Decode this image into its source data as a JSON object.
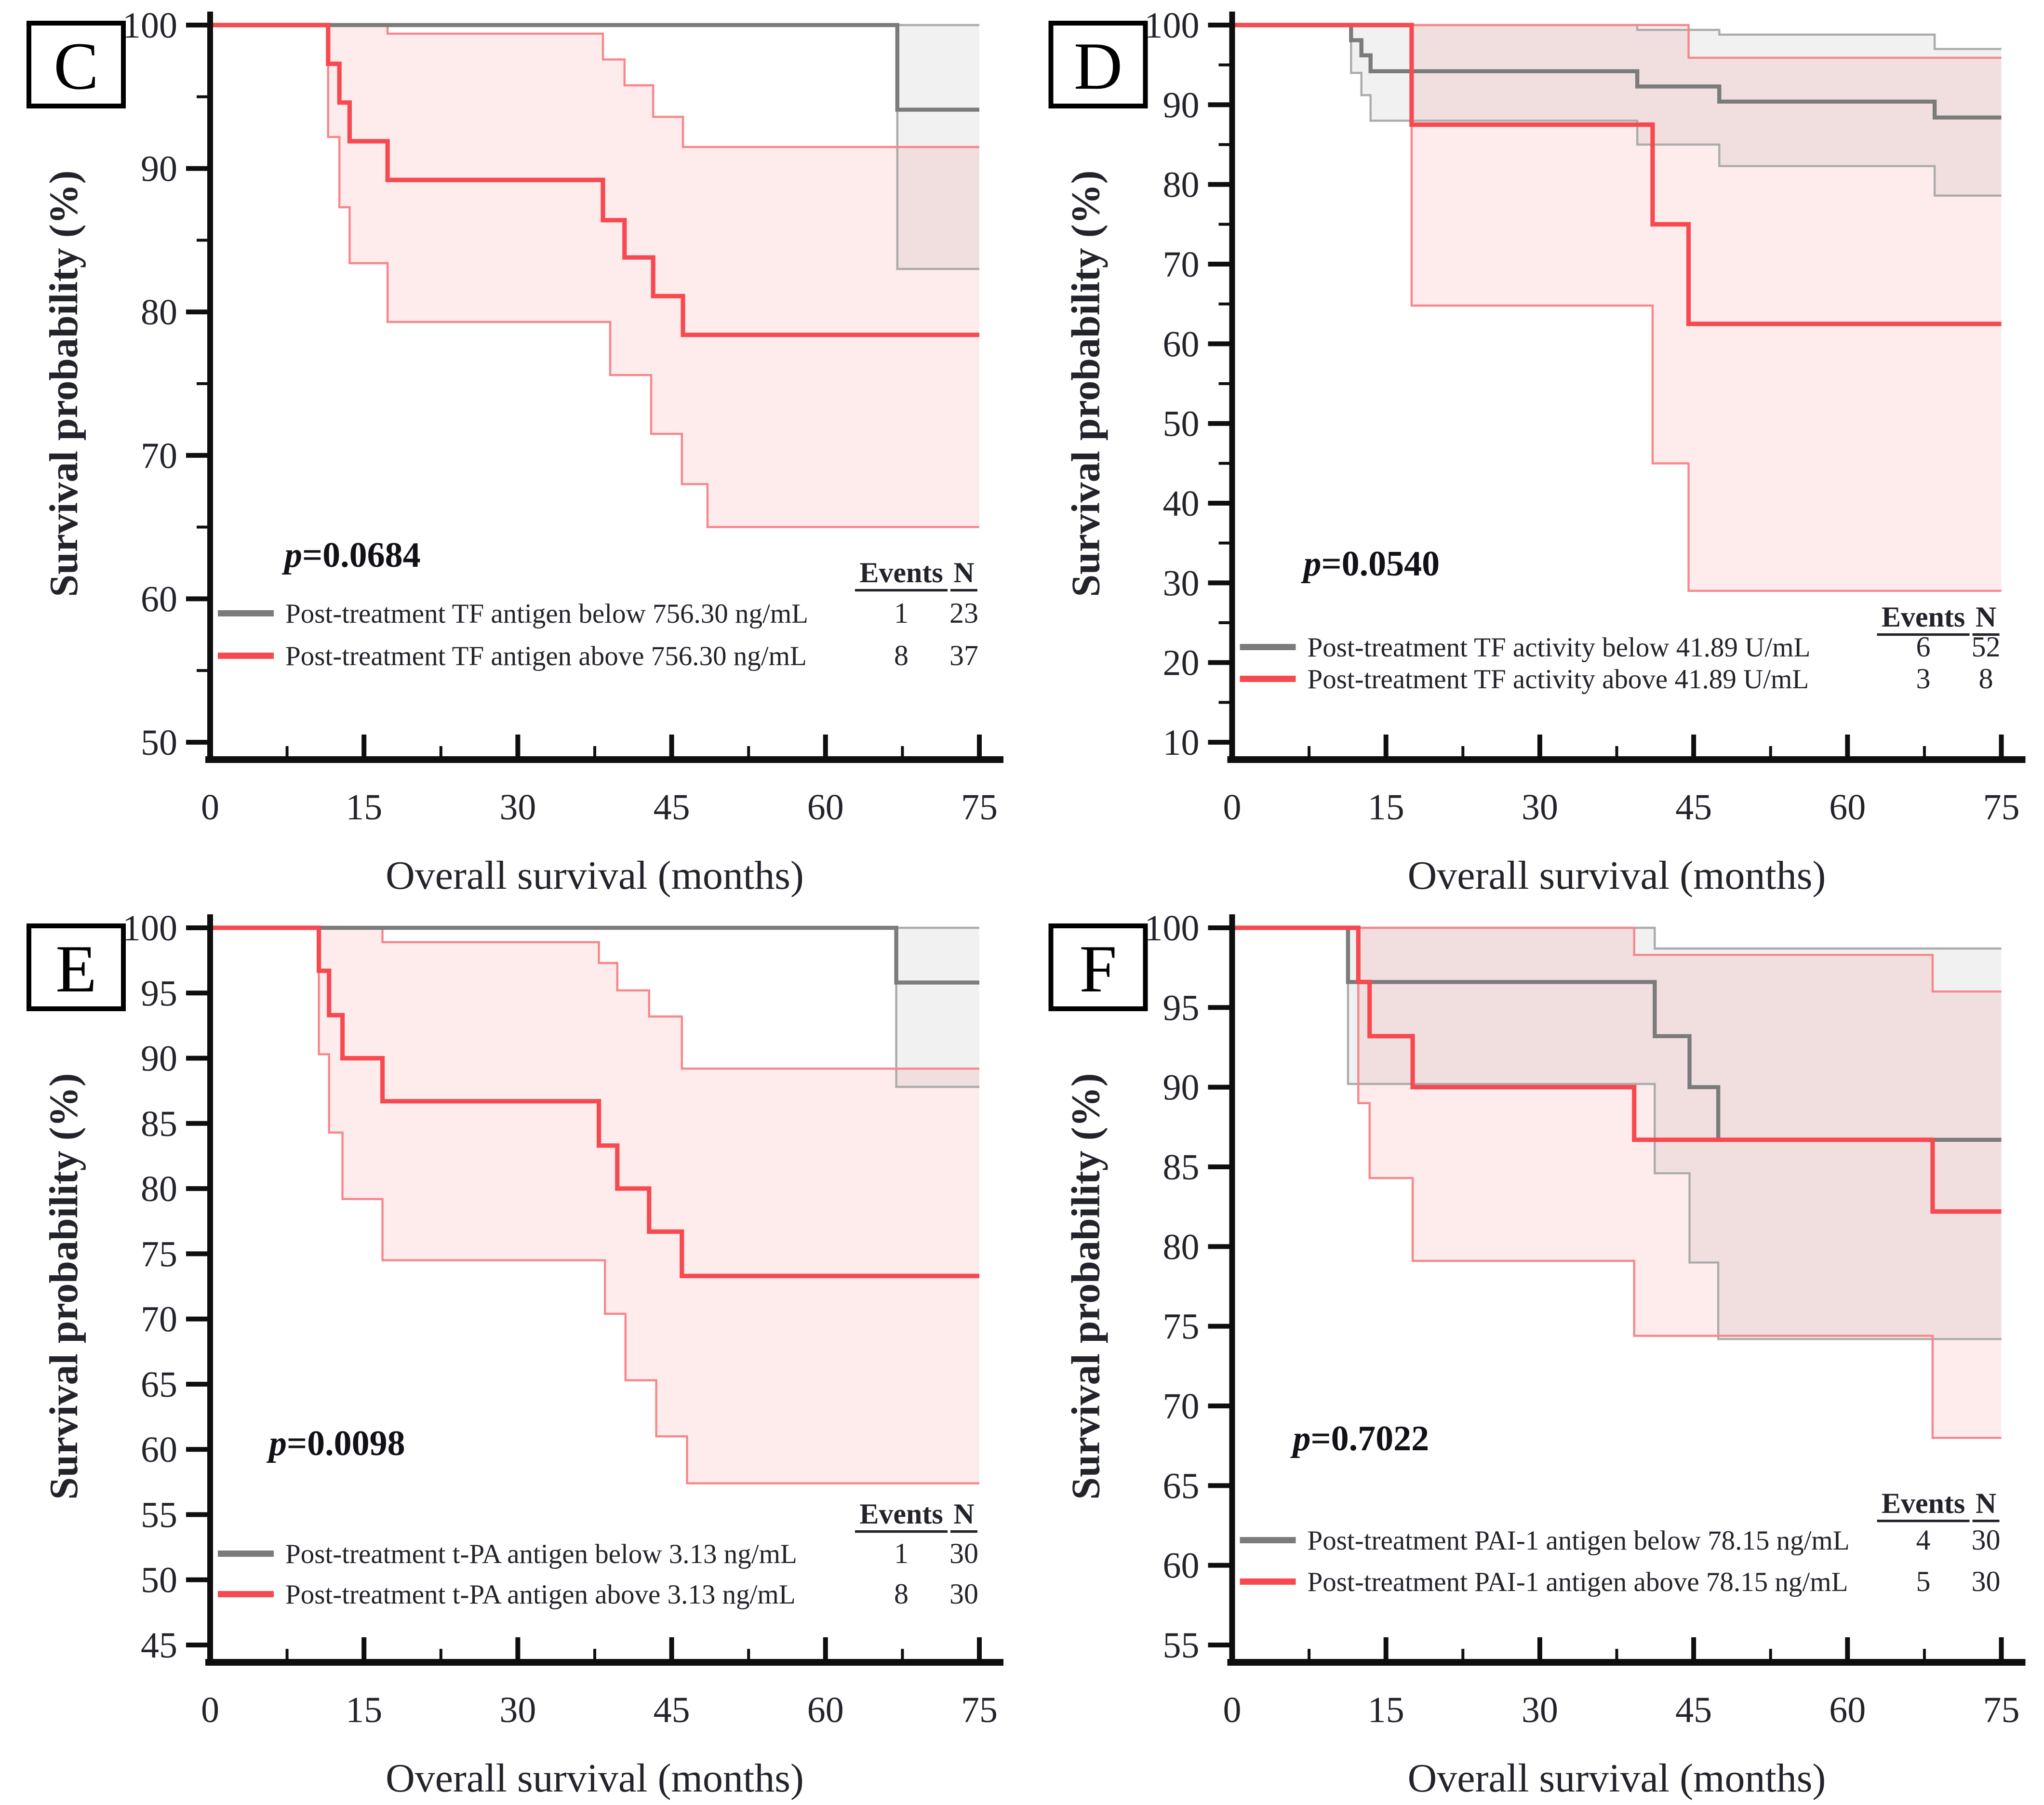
{
  "figure": {
    "xlabel": "Overall survival (months)",
    "ylabel": "Survival probability (%)",
    "legend_headers": {
      "events": "Events",
      "n": "N"
    },
    "colors": {
      "red_line": "#f7494f",
      "gray_line": "#7b7b7b",
      "red_ci_line": "#f8868a",
      "gray_ci_line": "#ababab",
      "red_ci_fill": "rgba(247,73,79,0.10)",
      "gray_ci_fill": "rgba(128,128,128,0.11)",
      "axis": "#0e0e0e",
      "text": "#23242b"
    }
  },
  "chart_data": [
    {
      "type": "line",
      "panel_label": "C",
      "p_value": "0.0684",
      "xlabel": "Overall survival (months)",
      "ylabel": "Survival probability (%)",
      "xlim": [
        0,
        75
      ],
      "ylim": [
        50,
        100
      ],
      "x_ticks": [
        0,
        15,
        30,
        45,
        60,
        75
      ],
      "y_ticks": [
        100,
        90,
        80,
        70,
        60,
        50
      ],
      "y_minor": true,
      "series": [
        {
          "name": "Post-treatment TF antigen below 756.30 ng/mL",
          "color_key": "gray",
          "events": 1,
          "n": 23,
          "steps": [
            [
              0,
              100
            ],
            [
              67,
              94.1
            ],
            [
              75,
              94.1
            ]
          ],
          "ci_upper": [
            [
              0,
              100
            ],
            [
              75,
              100
            ]
          ],
          "ci_lower": [
            [
              0,
              100
            ],
            [
              67,
              83.0
            ],
            [
              75,
              83.0
            ]
          ]
        },
        {
          "name": "Post-treatment TF antigen above 756.30 ng/mL",
          "color_key": "red",
          "events": 8,
          "n": 37,
          "steps": [
            [
              0,
              100
            ],
            [
              11.5,
              97.3
            ],
            [
              12.6,
              94.6
            ],
            [
              13.6,
              91.9
            ],
            [
              17.3,
              89.2
            ],
            [
              38.3,
              86.4
            ],
            [
              40.4,
              83.8
            ],
            [
              43.2,
              81.1
            ],
            [
              46.1,
              78.4
            ],
            [
              75,
              78.4
            ]
          ],
          "ci_upper": [
            [
              0,
              100
            ],
            [
              17.3,
              99.4
            ],
            [
              38.3,
              97.6
            ],
            [
              40.4,
              95.8
            ],
            [
              43.2,
              93.6
            ],
            [
              46.1,
              91.5
            ],
            [
              75,
              91.5
            ]
          ],
          "ci_lower": [
            [
              0,
              100
            ],
            [
              11.5,
              92.2
            ],
            [
              12.6,
              87.3
            ],
            [
              13.6,
              83.4
            ],
            [
              17.3,
              79.3
            ],
            [
              39.0,
              75.6
            ],
            [
              43.0,
              71.5
            ],
            [
              46.0,
              68.0
            ],
            [
              48.5,
              65.0
            ],
            [
              75,
              65.0
            ]
          ]
        }
      ]
    },
    {
      "type": "line",
      "panel_label": "D",
      "p_value": "0.0540",
      "xlabel": "Overall survival (months)",
      "ylabel": "Survival probability (%)",
      "xlim": [
        0,
        75
      ],
      "ylim": [
        10,
        100
      ],
      "x_ticks": [
        0,
        15,
        30,
        45,
        60,
        75
      ],
      "y_ticks": [
        100,
        90,
        80,
        70,
        60,
        50,
        40,
        30,
        20,
        10
      ],
      "y_minor": true,
      "series": [
        {
          "name": "Post-treatment TF activity below 41.89 U/mL",
          "color_key": "gray",
          "events": 6,
          "n": 52,
          "steps": [
            [
              0,
              100
            ],
            [
              11.6,
              98.1
            ],
            [
              12.6,
              96.2
            ],
            [
              13.5,
              94.2
            ],
            [
              39.5,
              92.3
            ],
            [
              47.5,
              90.4
            ],
            [
              68.5,
              88.4
            ],
            [
              75,
              88.4
            ]
          ],
          "ci_upper": [
            [
              0,
              100
            ],
            [
              39.5,
              99.4
            ],
            [
              47.5,
              98.8
            ],
            [
              68.5,
              97.0
            ],
            [
              75,
              97.0
            ]
          ],
          "ci_lower": [
            [
              0,
              100
            ],
            [
              11.6,
              94.0
            ],
            [
              12.6,
              91.2
            ],
            [
              13.5,
              88.0
            ],
            [
              39.5,
              85.0
            ],
            [
              47.5,
              82.3
            ],
            [
              68.5,
              78.6
            ],
            [
              75,
              78.6
            ]
          ]
        },
        {
          "name": "Post-treatment TF activity above 41.89 U/mL",
          "color_key": "red",
          "events": 3,
          "n": 8,
          "steps": [
            [
              0,
              100
            ],
            [
              17.5,
              87.5
            ],
            [
              41.0,
              75.0
            ],
            [
              44.5,
              62.5
            ],
            [
              75,
              62.5
            ]
          ],
          "ci_upper": [
            [
              0,
              100
            ],
            [
              44.5,
              95.9
            ],
            [
              75,
              95.9
            ]
          ],
          "ci_lower": [
            [
              0,
              100
            ],
            [
              17.5,
              64.8
            ],
            [
              41.0,
              45.0
            ],
            [
              44.5,
              29.0
            ],
            [
              75,
              29.0
            ]
          ]
        }
      ]
    },
    {
      "type": "line",
      "panel_label": "E",
      "p_value": "0.0098",
      "xlabel": "Overall survival (months)",
      "ylabel": "Survival probability (%)",
      "xlim": [
        0,
        75
      ],
      "ylim": [
        45,
        100
      ],
      "x_ticks": [
        0,
        15,
        30,
        45,
        60,
        75
      ],
      "y_ticks": [
        100,
        95,
        90,
        85,
        80,
        75,
        70,
        65,
        60,
        55,
        50,
        45
      ],
      "y_minor": false,
      "series": [
        {
          "name": "Post-treatment t-PA antigen below 3.13 ng/mL",
          "color_key": "gray",
          "events": 1,
          "n": 30,
          "steps": [
            [
              0,
              100
            ],
            [
              66.9,
              95.8
            ],
            [
              75,
              95.8
            ]
          ],
          "ci_upper": [
            [
              0,
              100
            ],
            [
              75,
              100
            ]
          ],
          "ci_lower": [
            [
              0,
              100
            ],
            [
              66.9,
              87.8
            ],
            [
              75,
              87.8
            ]
          ]
        },
        {
          "name": "Post-treatment t-PA antigen above 3.13 ng/mL",
          "color_key": "red",
          "events": 8,
          "n": 30,
          "steps": [
            [
              0,
              100
            ],
            [
              10.6,
              96.7
            ],
            [
              11.6,
              93.3
            ],
            [
              12.9,
              90.0
            ],
            [
              16.8,
              86.7
            ],
            [
              37.9,
              83.3
            ],
            [
              39.7,
              80.0
            ],
            [
              42.8,
              76.7
            ],
            [
              46.0,
              73.3
            ],
            [
              75,
              73.3
            ]
          ],
          "ci_upper": [
            [
              0,
              100
            ],
            [
              16.8,
              98.9
            ],
            [
              37.9,
              97.3
            ],
            [
              39.7,
              95.2
            ],
            [
              42.8,
              93.2
            ],
            [
              46.0,
              89.2
            ],
            [
              75,
              89.2
            ]
          ],
          "ci_lower": [
            [
              0,
              100
            ],
            [
              10.6,
              90.3
            ],
            [
              11.6,
              84.3
            ],
            [
              12.9,
              79.2
            ],
            [
              16.8,
              74.5
            ],
            [
              38.5,
              70.4
            ],
            [
              40.5,
              65.3
            ],
            [
              43.5,
              61.0
            ],
            [
              46.5,
              57.4
            ],
            [
              75,
              57.4
            ]
          ]
        }
      ]
    },
    {
      "type": "line",
      "panel_label": "F",
      "p_value": "0.7022",
      "xlabel": "Overall survival (months)",
      "ylabel": "Survival probability (%)",
      "xlim": [
        0,
        75
      ],
      "ylim": [
        55,
        100
      ],
      "x_ticks": [
        0,
        15,
        30,
        45,
        60,
        75
      ],
      "y_ticks": [
        100,
        95,
        90,
        85,
        80,
        75,
        70,
        65,
        60,
        55
      ],
      "y_minor": false,
      "series": [
        {
          "name": "Post-treatment PAI-1 antigen below 78.15 ng/mL",
          "color_key": "gray",
          "events": 4,
          "n": 30,
          "steps": [
            [
              0,
              100
            ],
            [
              11.3,
              96.6
            ],
            [
              41.2,
              93.2
            ],
            [
              44.6,
              90.0
            ],
            [
              47.4,
              86.7
            ],
            [
              75,
              86.7
            ]
          ],
          "ci_upper": [
            [
              0,
              100
            ],
            [
              41.2,
              98.7
            ],
            [
              75,
              98.7
            ]
          ],
          "ci_lower": [
            [
              0,
              100
            ],
            [
              11.3,
              90.2
            ],
            [
              41.2,
              84.6
            ],
            [
              44.6,
              79.0
            ],
            [
              47.4,
              74.2
            ],
            [
              75,
              74.2
            ]
          ]
        },
        {
          "name": "Post-treatment PAI-1 antigen above 78.15 ng/mL",
          "color_key": "red",
          "events": 5,
          "n": 30,
          "steps": [
            [
              0,
              100
            ],
            [
              12.3,
              96.6
            ],
            [
              13.4,
              93.2
            ],
            [
              17.6,
              90.0
            ],
            [
              39.2,
              86.7
            ],
            [
              68.3,
              82.2
            ],
            [
              75,
              82.2
            ]
          ],
          "ci_upper": [
            [
              0,
              100
            ],
            [
              39.2,
              98.3
            ],
            [
              68.3,
              96.0
            ],
            [
              75,
              96.0
            ]
          ],
          "ci_lower": [
            [
              0,
              100
            ],
            [
              12.3,
              89.0
            ],
            [
              13.4,
              84.3
            ],
            [
              17.6,
              79.1
            ],
            [
              39.2,
              74.4
            ],
            [
              68.3,
              68.0
            ],
            [
              75,
              68.0
            ]
          ]
        }
      ]
    }
  ]
}
